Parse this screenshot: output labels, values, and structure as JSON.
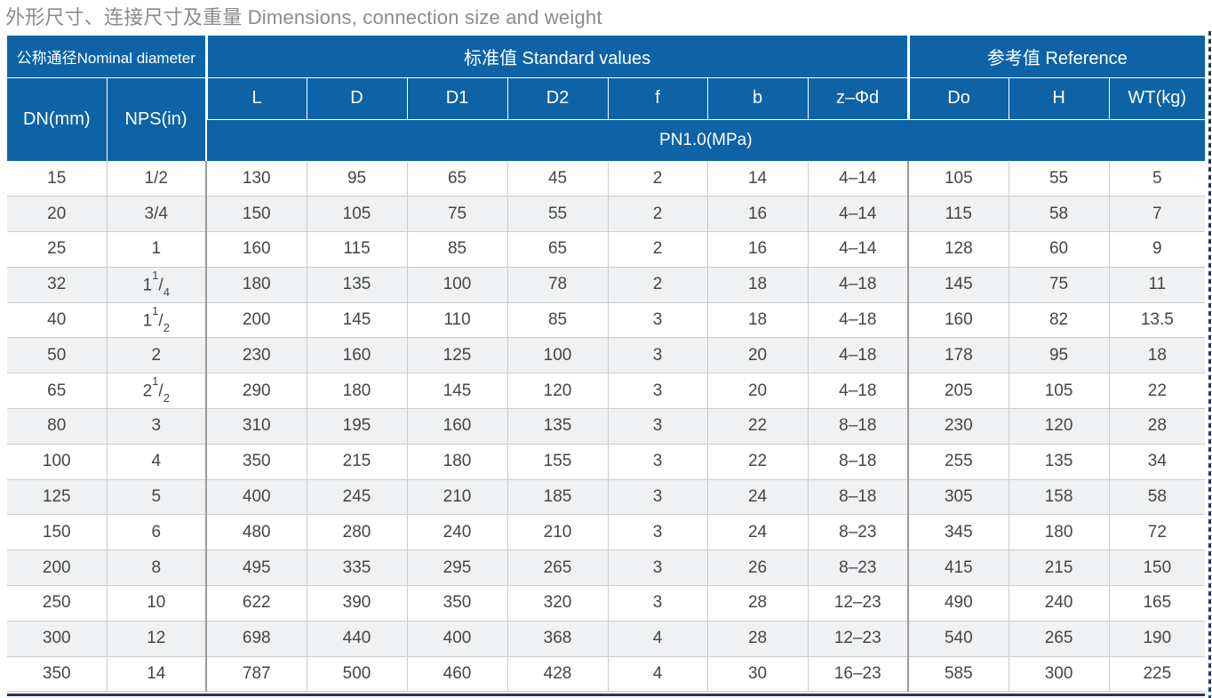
{
  "title": "外形尺寸、连接尺寸及重量 Dimensions, connection size and weight",
  "colors": {
    "header_blue": "#0e63a7",
    "alt_row": "#eff1f3",
    "cell_border": "#cacccd",
    "section_border": "#9a9a9a",
    "bottom_bar": "#20375f",
    "dashed_edge": "#1c3b6d",
    "title_gray": "#8a8b8d",
    "body_text": "#454545"
  },
  "table": {
    "group_headers": {
      "nominal": "公称通径Nominal diameter",
      "standard": "标准值 Standard values",
      "reference": "参考值 Reference"
    },
    "columns": [
      "DN(mm)",
      "NPS(in)",
      "L",
      "D",
      "D1",
      "D2",
      "f",
      "b",
      "z–Φd",
      "Do",
      "H",
      "WT(kg)"
    ],
    "pressure_band": "PN1.0(MPa)",
    "rows": [
      [
        "15",
        "1/2",
        "130",
        "95",
        "65",
        "45",
        "2",
        "14",
        "4–14",
        "105",
        "55",
        "5"
      ],
      [
        "20",
        "3/4",
        "150",
        "105",
        "75",
        "55",
        "2",
        "16",
        "4–14",
        "115",
        "58",
        "7"
      ],
      [
        "25",
        "1",
        "160",
        "115",
        "85",
        "65",
        "2",
        "16",
        "4–14",
        "128",
        "60",
        "9"
      ],
      [
        "32",
        "1 1/4",
        "180",
        "135",
        "100",
        "78",
        "2",
        "18",
        "4–18",
        "145",
        "75",
        "11"
      ],
      [
        "40",
        "1 1/2",
        "200",
        "145",
        "110",
        "85",
        "3",
        "18",
        "4–18",
        "160",
        "82",
        "13.5"
      ],
      [
        "50",
        "2",
        "230",
        "160",
        "125",
        "100",
        "3",
        "20",
        "4–18",
        "178",
        "95",
        "18"
      ],
      [
        "65",
        "2 1/2",
        "290",
        "180",
        "145",
        "120",
        "3",
        "20",
        "4–18",
        "205",
        "105",
        "22"
      ],
      [
        "80",
        "3",
        "310",
        "195",
        "160",
        "135",
        "3",
        "22",
        "8–18",
        "230",
        "120",
        "28"
      ],
      [
        "100",
        "4",
        "350",
        "215",
        "180",
        "155",
        "3",
        "22",
        "8–18",
        "255",
        "135",
        "34"
      ],
      [
        "125",
        "5",
        "400",
        "245",
        "210",
        "185",
        "3",
        "24",
        "8–18",
        "305",
        "158",
        "58"
      ],
      [
        "150",
        "6",
        "480",
        "280",
        "240",
        "210",
        "3",
        "24",
        "8–23",
        "345",
        "180",
        "72"
      ],
      [
        "200",
        "8",
        "495",
        "335",
        "295",
        "265",
        "3",
        "26",
        "8–23",
        "415",
        "215",
        "150"
      ],
      [
        "250",
        "10",
        "622",
        "390",
        "350",
        "320",
        "3",
        "28",
        "12–23",
        "490",
        "240",
        "165"
      ],
      [
        "300",
        "12",
        "698",
        "440",
        "400",
        "368",
        "4",
        "28",
        "12–23",
        "540",
        "265",
        "190"
      ],
      [
        "350",
        "14",
        "787",
        "500",
        "460",
        "428",
        "4",
        "30",
        "16–23",
        "585",
        "300",
        "225"
      ]
    ]
  }
}
